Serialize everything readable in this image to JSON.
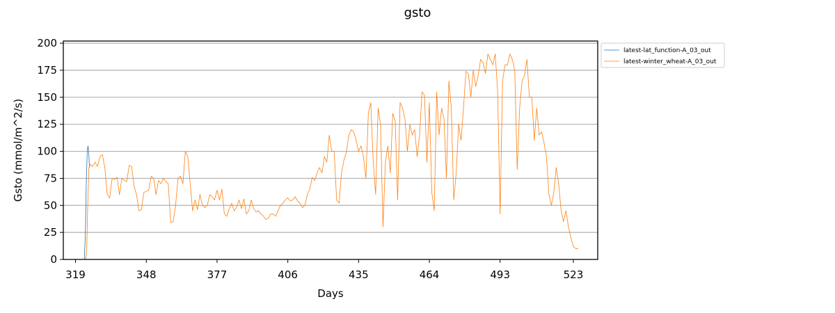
{
  "chart_data": {
    "type": "line",
    "title": "gsto",
    "xlabel": "Days",
    "ylabel": "Gsto (mmol/m^2/s)",
    "xlim": [
      314,
      533
    ],
    "ylim": [
      0,
      202
    ],
    "xticks": [
      319,
      348,
      377,
      406,
      435,
      464,
      493,
      523
    ],
    "yticks": [
      0,
      25,
      50,
      75,
      100,
      125,
      150,
      175,
      200
    ],
    "grid": "horizontal",
    "legend_position": "outside-top-right",
    "series": [
      {
        "name": "latest-lat_function-A_03_out",
        "color": "#1f77b4",
        "points": [
          [
            322.6,
            0
          ],
          [
            323.0,
            20
          ],
          [
            323.4,
            70
          ],
          [
            323.8,
            100
          ],
          [
            324.1,
            105
          ],
          [
            324.4,
            100
          ],
          [
            324.7,
            85
          ]
        ]
      },
      {
        "name": "latest-winter_wheat-A_03_out",
        "color": "#ff7f0e",
        "points": [
          [
            323.2,
            0
          ],
          [
            323.6,
            10
          ],
          [
            324.0,
            50
          ],
          [
            324.5,
            85
          ],
          [
            325,
            88
          ],
          [
            326,
            86
          ],
          [
            327,
            90
          ],
          [
            328,
            86
          ],
          [
            329,
            95
          ],
          [
            330,
            97
          ],
          [
            331,
            85
          ],
          [
            332,
            60
          ],
          [
            333,
            57
          ],
          [
            334,
            75
          ],
          [
            335,
            74
          ],
          [
            336,
            76
          ],
          [
            337,
            60
          ],
          [
            338,
            75
          ],
          [
            339,
            73
          ],
          [
            340,
            72
          ],
          [
            341,
            87
          ],
          [
            342,
            86
          ],
          [
            343,
            68
          ],
          [
            344,
            60
          ],
          [
            345,
            45
          ],
          [
            346,
            46
          ],
          [
            347,
            62
          ],
          [
            348,
            63
          ],
          [
            349,
            64
          ],
          [
            350,
            77
          ],
          [
            351,
            75
          ],
          [
            352,
            60
          ],
          [
            353,
            73
          ],
          [
            354,
            70
          ],
          [
            355,
            75
          ],
          [
            356,
            72
          ],
          [
            357,
            70
          ],
          [
            358,
            34
          ],
          [
            359,
            35
          ],
          [
            360,
            50
          ],
          [
            361,
            75
          ],
          [
            362,
            77
          ],
          [
            363,
            70
          ],
          [
            364,
            100
          ],
          [
            365,
            95
          ],
          [
            366,
            70
          ],
          [
            367,
            45
          ],
          [
            368,
            55
          ],
          [
            369,
            46
          ],
          [
            370,
            60
          ],
          [
            371,
            50
          ],
          [
            372,
            48
          ],
          [
            373,
            50
          ],
          [
            374,
            60
          ],
          [
            375,
            58
          ],
          [
            376,
            55
          ],
          [
            377,
            64
          ],
          [
            378,
            55
          ],
          [
            379,
            65
          ],
          [
            380,
            42
          ],
          [
            381,
            40
          ],
          [
            382,
            47
          ],
          [
            383,
            52
          ],
          [
            384,
            45
          ],
          [
            385,
            48
          ],
          [
            386,
            55
          ],
          [
            387,
            47
          ],
          [
            388,
            56
          ],
          [
            389,
            42
          ],
          [
            390,
            45
          ],
          [
            391,
            55
          ],
          [
            392,
            47
          ],
          [
            393,
            44
          ],
          [
            394,
            45
          ],
          [
            395,
            42
          ],
          [
            396,
            40
          ],
          [
            397,
            37
          ],
          [
            398,
            38
          ],
          [
            399,
            42
          ],
          [
            400,
            42
          ],
          [
            401,
            40
          ],
          [
            402,
            45
          ],
          [
            403,
            50
          ],
          [
            404,
            52
          ],
          [
            405,
            55
          ],
          [
            406,
            57
          ],
          [
            407,
            54
          ],
          [
            408,
            55
          ],
          [
            409,
            58
          ],
          [
            410,
            54
          ],
          [
            411,
            52
          ],
          [
            412,
            48
          ],
          [
            413,
            50
          ],
          [
            414,
            60
          ],
          [
            415,
            65
          ],
          [
            416,
            76
          ],
          [
            417,
            73
          ],
          [
            418,
            80
          ],
          [
            419,
            85
          ],
          [
            420,
            80
          ],
          [
            421,
            95
          ],
          [
            422,
            90
          ],
          [
            423,
            115
          ],
          [
            424,
            100
          ],
          [
            425,
            100
          ],
          [
            426,
            55
          ],
          [
            427,
            52
          ],
          [
            428,
            80
          ],
          [
            429,
            92
          ],
          [
            430,
            99
          ],
          [
            431,
            115
          ],
          [
            432,
            120
          ],
          [
            433,
            118
          ],
          [
            434,
            110
          ],
          [
            435,
            100
          ],
          [
            436,
            105
          ],
          [
            437,
            95
          ],
          [
            438,
            75
          ],
          [
            439,
            135
          ],
          [
            440,
            145
          ],
          [
            441,
            90
          ],
          [
            442,
            60
          ],
          [
            443,
            140
          ],
          [
            444,
            125
          ],
          [
            445,
            30
          ],
          [
            446,
            90
          ],
          [
            447,
            105
          ],
          [
            448,
            80
          ],
          [
            449,
            135
          ],
          [
            450,
            128
          ],
          [
            451,
            55
          ],
          [
            452,
            145
          ],
          [
            453,
            140
          ],
          [
            454,
            130
          ],
          [
            455,
            100
          ],
          [
            456,
            125
          ],
          [
            457,
            115
          ],
          [
            458,
            120
          ],
          [
            459,
            95
          ],
          [
            460,
            115
          ],
          [
            461,
            155
          ],
          [
            462,
            152
          ],
          [
            463,
            90
          ],
          [
            464,
            145
          ],
          [
            465,
            62
          ],
          [
            466,
            45
          ],
          [
            467,
            155
          ],
          [
            468,
            115
          ],
          [
            469,
            140
          ],
          [
            470,
            130
          ],
          [
            471,
            75
          ],
          [
            472,
            165
          ],
          [
            473,
            140
          ],
          [
            474,
            55
          ],
          [
            475,
            80
          ],
          [
            476,
            125
          ],
          [
            477,
            110
          ],
          [
            478,
            140
          ],
          [
            479,
            174
          ],
          [
            480,
            172
          ],
          [
            481,
            150
          ],
          [
            482,
            175
          ],
          [
            483,
            160
          ],
          [
            484,
            170
          ],
          [
            485,
            185
          ],
          [
            486,
            182
          ],
          [
            487,
            172
          ],
          [
            488,
            190
          ],
          [
            489,
            185
          ],
          [
            490,
            180
          ],
          [
            491,
            190
          ],
          [
            492,
            155
          ],
          [
            493,
            42
          ],
          [
            494,
            165
          ],
          [
            495,
            180
          ],
          [
            496,
            180
          ],
          [
            497,
            190
          ],
          [
            498,
            185
          ],
          [
            499,
            175
          ],
          [
            500,
            83
          ],
          [
            501,
            140
          ],
          [
            502,
            165
          ],
          [
            503,
            170
          ],
          [
            504,
            185
          ],
          [
            505,
            150
          ],
          [
            506,
            150
          ],
          [
            507,
            110
          ],
          [
            508,
            140
          ],
          [
            509,
            115
          ],
          [
            510,
            118
          ],
          [
            511,
            108
          ],
          [
            512,
            95
          ],
          [
            513,
            60
          ],
          [
            514,
            50
          ],
          [
            515,
            62
          ],
          [
            516,
            85
          ],
          [
            517,
            70
          ],
          [
            518,
            45
          ],
          [
            519,
            35
          ],
          [
            520,
            45
          ],
          [
            521,
            30
          ],
          [
            522,
            20
          ],
          [
            523,
            12
          ],
          [
            524,
            10
          ],
          [
            525,
            10
          ]
        ]
      }
    ]
  }
}
